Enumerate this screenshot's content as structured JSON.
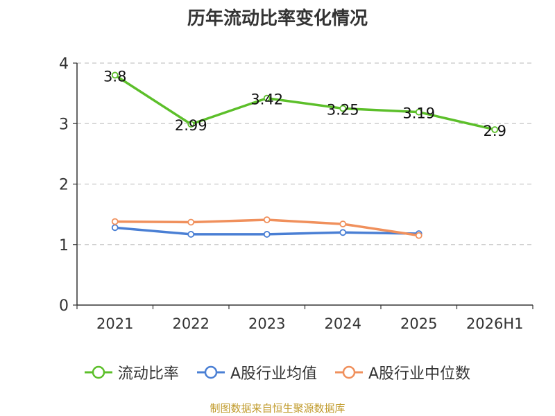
{
  "chart_data": {
    "type": "line",
    "title": "历年流动比率变化情况",
    "categories": [
      "2021",
      "2022",
      "2023",
      "2024",
      "2025",
      "2026H1"
    ],
    "y_ticks": [
      "0",
      "1",
      "2",
      "3",
      "4"
    ],
    "ylim": [
      0,
      4
    ],
    "grid": "horizontal-dashed",
    "legend_position": "bottom",
    "series": [
      {
        "name": "流动比率",
        "color": "#5cbf2a",
        "values": [
          3.8,
          2.99,
          3.42,
          3.25,
          3.19,
          2.9
        ],
        "labels": [
          "3.8",
          "2.99",
          "3.42",
          "3.25",
          "3.19",
          "2.9"
        ]
      },
      {
        "name": "A股行业均值",
        "color": "#4a7fd4",
        "values": [
          1.28,
          1.17,
          1.17,
          1.2,
          1.18,
          null
        ]
      },
      {
        "name": "A股行业中位数",
        "color": "#f0905c",
        "values": [
          1.38,
          1.37,
          1.41,
          1.34,
          1.15,
          null
        ]
      }
    ],
    "source": "制图数据来自恒生聚源数据库"
  }
}
